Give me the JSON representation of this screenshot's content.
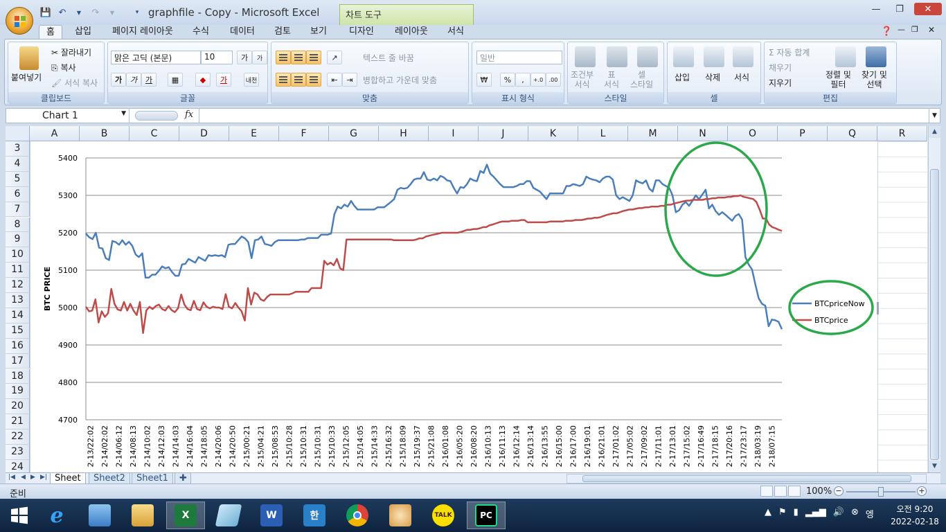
{
  "window": {
    "title": "graphfile - Copy  -  Microsoft Excel",
    "contextual_tab": "차트 도구"
  },
  "tabs": [
    "홈",
    "삽입",
    "페이지 레이아웃",
    "수식",
    "데이터",
    "검토",
    "보기",
    "디자인",
    "레이아웃",
    "서식"
  ],
  "ribbon": {
    "clipboard": {
      "label": "클립보드",
      "paste": "붙여넣기",
      "cut": "잘라내기",
      "copy": "복사",
      "format_painter": "서식 복사"
    },
    "font": {
      "label": "글꼴",
      "font_name": "맑은 고딕 (본문)",
      "font_size": "10",
      "bold": "가",
      "italic": "가",
      "underline": "가",
      "grow": "가",
      "shrink": "가",
      "phonetic": "내천"
    },
    "alignment": {
      "label": "맞춤",
      "wrap": "텍스트 줄 바꿈",
      "merge": "병합하고 가운데 맞춤"
    },
    "number": {
      "label": "표시 형식",
      "format": "일반",
      "currency": "₩",
      "percent": "%",
      "comma": ",",
      "inc": "+.0",
      "dec": ".00"
    },
    "styles": {
      "label": "스타일",
      "conditional": "조건부\n서식",
      "table": "표\n서식",
      "cell": "셀\n스타일"
    },
    "cells": {
      "label": "셀",
      "insert": "삽입",
      "delete": "삭제",
      "format": "서식"
    },
    "editing": {
      "label": "편집",
      "autosum": "Σ 자동 합계",
      "fill": "채우기",
      "clear": "지우기",
      "sort": "정렬 및\n필터",
      "find": "찾기 및\n선택"
    }
  },
  "formula_bar": {
    "name_box": "Chart 1",
    "fx": "fx",
    "value": ""
  },
  "columns": [
    "A",
    "B",
    "C",
    "D",
    "E",
    "F",
    "G",
    "H",
    "I",
    "J",
    "K",
    "L",
    "M",
    "N",
    "O",
    "P",
    "Q",
    "R"
  ],
  "rows": [
    "3",
    "4",
    "5",
    "6",
    "7",
    "8",
    "9",
    "10",
    "11",
    "12",
    "13",
    "14",
    "15",
    "16",
    "17",
    "18",
    "19",
    "20",
    "21",
    "22",
    "23",
    "24"
  ],
  "sheet_tabs": [
    "Sheet",
    "Sheet2",
    "Sheet1"
  ],
  "status": {
    "ready": "준비",
    "zoom": "100%"
  },
  "taskbar": {
    "time": "오전 9:20",
    "date": "2022-02-18",
    "ime": "엥"
  },
  "chart_data": {
    "type": "line",
    "ylabel": "BTC PRICE",
    "xlabel": "",
    "ylim": [
      4700,
      5400
    ],
    "yticks": [
      4700,
      4800,
      4900,
      5000,
      5100,
      5200,
      5300,
      5400
    ],
    "grid": true,
    "legend": "right",
    "x_tick_labels": [
      "2-13/22:02",
      "2-14/02:02",
      "2-14/06:12",
      "2-14/08:13",
      "2-14/10:02",
      "2-14/12:03",
      "2-14/14:03",
      "2-14/16:04",
      "2-14/18:05",
      "2-14/20:06",
      "2-14/20:50",
      "2-15/00:21",
      "2-15/04:21",
      "2-15/08:53",
      "2-15/10:28",
      "2-15/10:31",
      "2-15/10:31",
      "2-15/10:33",
      "2-15/12:05",
      "2-15/14:05",
      "2-15/14:33",
      "2-15/16:32",
      "2-15/18:09",
      "2-15/19:37",
      "2-15/21:08",
      "2-16/01:08",
      "2-16/05:20",
      "2-16/08:20",
      "2-16/10:13",
      "2-16/11:13",
      "2-16/12:14",
      "2-16/13:14",
      "2-16/13:55",
      "2-16/15:00",
      "2-16/17:00",
      "2-16/19:01",
      "2-16/21:01",
      "2-17/01:02",
      "2-17/05:02",
      "2-17/09:02",
      "2-17/11:01",
      "2-17/13:01",
      "2-17/15:02",
      "2-17/16:49",
      "2-17/18:15",
      "2-17/20:16",
      "2-17/23:17",
      "2-18/03:19",
      "2-18/07:15"
    ],
    "series": [
      {
        "name": "BTCpriceNow",
        "color": "#4a7ebb",
        "values": [
          5198,
          5188,
          5183,
          5200,
          5160,
          5158,
          5132,
          5127,
          5178,
          5175,
          5168,
          5180,
          5168,
          5176,
          5165,
          5142,
          5135,
          5145,
          5080,
          5080,
          5088,
          5088,
          5098,
          5110,
          5105,
          5108,
          5095,
          5085,
          5085,
          5115,
          5117,
          5130,
          5125,
          5120,
          5135,
          5130,
          5125,
          5140,
          5138,
          5140,
          5138,
          5140,
          5135,
          5168,
          5170,
          5170,
          5180,
          5190,
          5185,
          5175,
          5132,
          5180,
          5182,
          5190,
          5170,
          5168,
          5165,
          5175,
          5180,
          5180,
          5180,
          5180,
          5180,
          5180,
          5180,
          5182,
          5182,
          5186,
          5186,
          5186,
          5186,
          5195,
          5195,
          5195,
          5198,
          5250,
          5270,
          5265,
          5275,
          5270,
          5285,
          5272,
          5262,
          5262,
          5262,
          5262,
          5262,
          5262,
          5268,
          5268,
          5268,
          5275,
          5282,
          5290,
          5315,
          5320,
          5318,
          5320,
          5330,
          5342,
          5345,
          5345,
          5362,
          5342,
          5340,
          5345,
          5340,
          5352,
          5348,
          5340,
          5338,
          5320,
          5305,
          5322,
          5320,
          5330,
          5345,
          5340,
          5338,
          5365,
          5360,
          5382,
          5358,
          5350,
          5340,
          5330,
          5322,
          5322,
          5322,
          5322,
          5325,
          5330,
          5330,
          5338,
          5338,
          5320,
          5315,
          5310,
          5300,
          5290,
          5305,
          5305,
          5305,
          5305,
          5305,
          5325,
          5325,
          5330,
          5328,
          5325,
          5330,
          5350,
          5345,
          5342,
          5340,
          5335,
          5345,
          5350,
          5350,
          5342,
          5300,
          5290,
          5295,
          5290,
          5285,
          5300,
          5340,
          5335,
          5332,
          5340,
          5318,
          5310,
          5340,
          5340,
          5330,
          5325,
          5320,
          5300,
          5255,
          5260,
          5275,
          5282,
          5272,
          5285,
          5300,
          5290,
          5302,
          5315,
          5265,
          5275,
          5258,
          5248,
          5255,
          5248,
          5240,
          5232,
          5245,
          5250,
          5235,
          5135,
          5115,
          5102,
          5062,
          5025,
          5010,
          5005,
          4950,
          4968,
          4966,
          4962,
          4942
        ]
      },
      {
        "name": "BTCprice",
        "color": "#be4b48",
        "values": [
          5002,
          4990,
          4992,
          5022,
          4960,
          4990,
          4975,
          4985,
          5050,
          5010,
          4995,
          4992,
          5015,
          4992,
          5010,
          4992,
          4980,
          5015,
          4932,
          4992,
          5002,
          4996,
          5004,
          5008,
          4996,
          4992,
          5004,
          4993,
          4988,
          4998,
          5035,
          5008,
          4996,
          4993,
          5018,
          4996,
          4993,
          5014,
          5002,
          4998,
          5002,
          5000,
          5000,
          4996,
          5036,
          5002,
          4998,
          5012,
          5000,
          4990,
          4965,
          5052,
          5008,
          5040,
          5035,
          5022,
          5018,
          5028,
          5035,
          5035,
          5035,
          5035,
          5035,
          5035,
          5035,
          5038,
          5042,
          5042,
          5042,
          5042,
          5042,
          5052,
          5052,
          5052,
          5052,
          5125,
          5115,
          5120,
          5113,
          5130,
          5105,
          5100,
          5182,
          5182,
          5182,
          5182,
          5182,
          5182,
          5182,
          5182,
          5182,
          5182,
          5182,
          5182,
          5182,
          5182,
          5182,
          5180,
          5180,
          5180,
          5180,
          5180,
          5180,
          5180,
          5182,
          5185,
          5185,
          5190,
          5192,
          5194,
          5196,
          5198,
          5200,
          5200,
          5200,
          5200,
          5200,
          5200,
          5202,
          5205,
          5208,
          5208,
          5210,
          5210,
          5212,
          5215,
          5215,
          5220,
          5222,
          5225,
          5228,
          5230,
          5230,
          5230,
          5232,
          5232,
          5232,
          5234,
          5234,
          5228,
          5228,
          5228,
          5228,
          5228,
          5228,
          5228,
          5230,
          5230,
          5230,
          5230,
          5230,
          5232,
          5232,
          5232,
          5234,
          5234,
          5234,
          5236,
          5238,
          5238,
          5240,
          5240,
          5242,
          5245,
          5248,
          5250,
          5252,
          5252,
          5255,
          5258,
          5260,
          5262,
          5262,
          5264,
          5266,
          5266,
          5268,
          5268,
          5270,
          5270,
          5270,
          5272,
          5272,
          5275,
          5275,
          5278,
          5280,
          5282,
          5284,
          5286,
          5286,
          5288,
          5288,
          5288,
          5288,
          5290,
          5290,
          5292,
          5292,
          5294,
          5294,
          5294,
          5296,
          5296,
          5298,
          5298,
          5300,
          5296,
          5294,
          5292,
          5290,
          5282,
          5262,
          5238,
          5238,
          5222,
          5215,
          5212,
          5208,
          5205
        ]
      }
    ],
    "annotation": {
      "type": "ellipse",
      "color": "#2aa84a"
    }
  }
}
